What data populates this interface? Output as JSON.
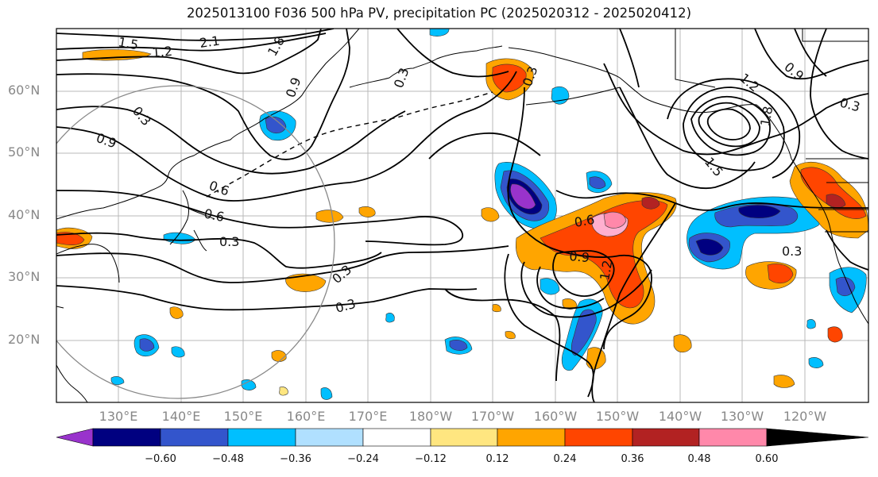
{
  "title": "2025013100 F036 500 hPa PV, precipitation PC (2025020312 - 2025020412)",
  "lat_labels": [
    "60°N",
    "50°N",
    "40°N",
    "30°N",
    "20°N"
  ],
  "lon_labels": [
    "130°E",
    "140°E",
    "150°E",
    "160°E",
    "170°E",
    "180°W",
    "170°W",
    "160°W",
    "150°W",
    "140°W",
    "130°W",
    "120°W"
  ],
  "colorbar": {
    "ticks": [
      "−0.60",
      "−0.48",
      "−0.36",
      "−0.24",
      "−0.12",
      "0.12",
      "0.24",
      "0.36",
      "0.48",
      "0.60"
    ],
    "colors": [
      "#9933cc",
      "#000080",
      "#3355cc",
      "#00bfff",
      "#b0e0ff",
      "#ffffff",
      "#ffe680",
      "#ffa500",
      "#ff4500",
      "#b22222",
      "#ff88aa"
    ]
  },
  "contour_labels": [
    "1.5",
    "1.2",
    "2.1",
    "1.8",
    "0.9",
    "0.3",
    "0.3",
    "0.9",
    "0.6",
    "0.6",
    "0.3",
    "0.3",
    "0.3",
    "0.3",
    "0.6",
    "0.9",
    "1.2",
    "1.5",
    "1.8",
    "0.3",
    "0.9",
    "1.2",
    "0.3"
  ]
}
